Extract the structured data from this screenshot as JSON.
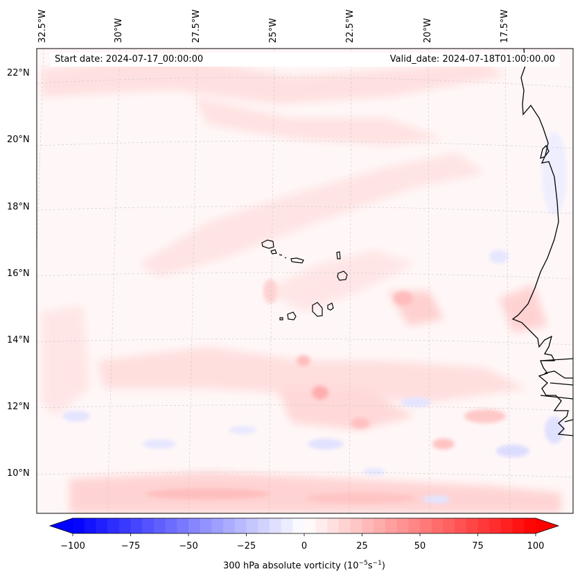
{
  "map": {
    "start_date": "Start date: 2024-07-17_00:00:00",
    "valid_date": "Valid_date: 2024-07-18T01:00:00.00",
    "field": "300 hPa absolute vorticity",
    "projection": "Lambert conformal",
    "region": "Cape Verde islands and West African coast (Senegal, Gambia, Guinea-Bissau, Mauritania)",
    "lon_labels": [
      "32.5°W",
      "30°W",
      "27.5°W",
      "25°W",
      "22.5°W",
      "20°W",
      "17.5°W"
    ],
    "lat_labels": [
      "22°N",
      "20°N",
      "18°N",
      "16°N",
      "14°N",
      "12°N",
      "10°N"
    ],
    "gridlines": "dashed light grey",
    "coastline_color": "#000000"
  },
  "colorbar": {
    "label_prefix": "300 hPa absolute vorticity (10",
    "label_exp1": "−5",
    "label_mid": "s",
    "label_exp2": "−1",
    "label_suffix": ")",
    "ticks": [
      "−100",
      "−75",
      "−50",
      "−25",
      "0",
      "25",
      "50",
      "75",
      "100"
    ],
    "tick_values": [
      -100,
      -75,
      -50,
      -25,
      0,
      25,
      50,
      75,
      100
    ],
    "range": [
      -100,
      100
    ],
    "colormap": "bwr",
    "extend": "both",
    "color_min": "#0000ff",
    "color_mid": "#ffffff",
    "color_max": "#ff0000"
  }
}
